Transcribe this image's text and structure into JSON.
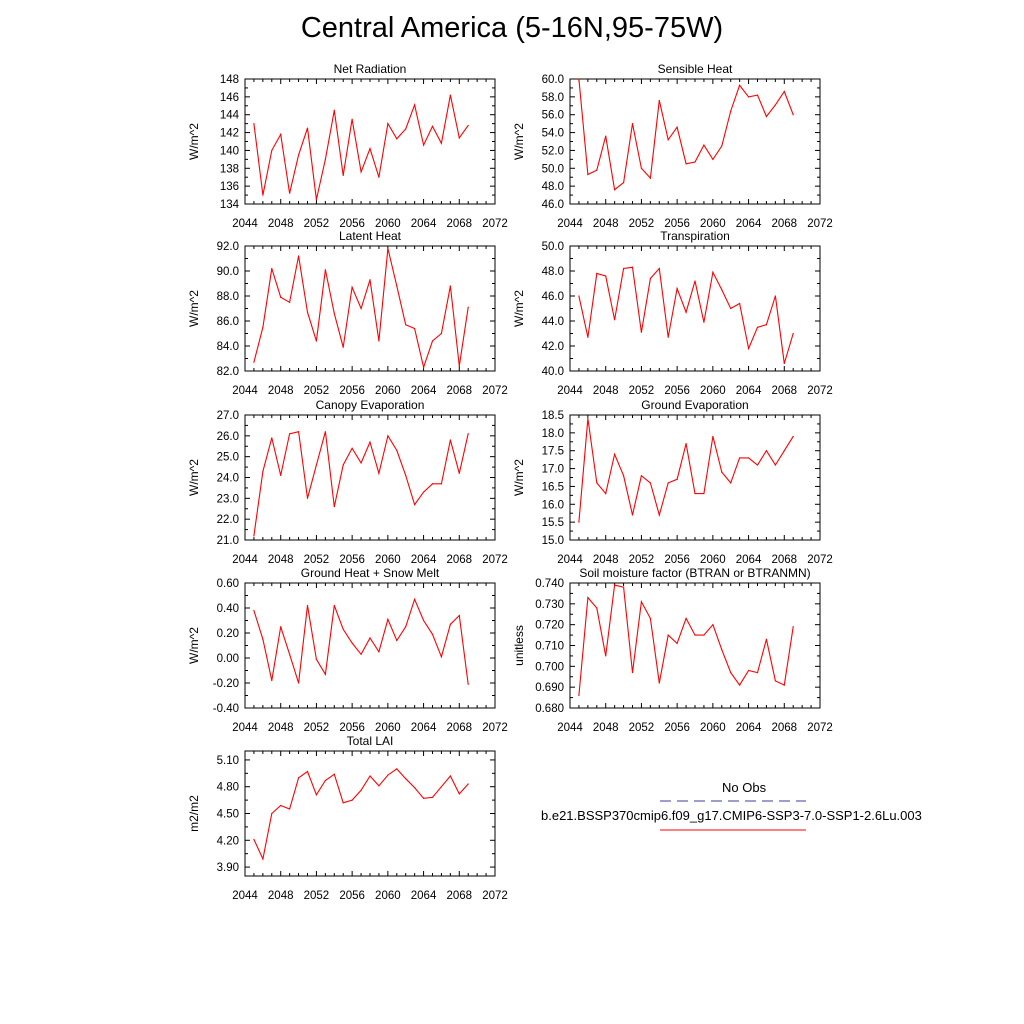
{
  "title": "Central America (5-16N,95-75W)",
  "legend": {
    "obs_label": "No Obs",
    "obs_color": "#3b3ba0",
    "model_label": "b.e21.BSSP370cmip6.f09_g17.CMIP6-SSP3-7.0-SSP1-2.6Lu.003",
    "model_color": "#ff0000"
  },
  "chart_data": [
    {
      "type": "line",
      "title": "Net Radiation",
      "ylabel": "W/m^2",
      "xlim": [
        2044,
        2072
      ],
      "xticks": [
        2044,
        2048,
        2052,
        2056,
        2060,
        2064,
        2068,
        2072
      ],
      "ylim": [
        134,
        148
      ],
      "yticks": [
        "134",
        "136",
        "138",
        "140",
        "142",
        "144",
        "146",
        "148"
      ],
      "x": [
        2045,
        2046,
        2047,
        2048,
        2049,
        2050,
        2051,
        2052,
        2053,
        2054,
        2055,
        2056,
        2057,
        2058,
        2059,
        2060,
        2061,
        2062,
        2063,
        2064,
        2065,
        2066,
        2067,
        2068,
        2069
      ],
      "series": [
        {
          "color": "#ff0000",
          "values": [
            143.0,
            135.0,
            140.0,
            141.8,
            135.2,
            139.5,
            142.5,
            134.5,
            139.0,
            144.5,
            137.2,
            143.5,
            137.6,
            140.2,
            137.0,
            143.0,
            141.3,
            142.4,
            145.1,
            140.6,
            142.7,
            140.8,
            146.2,
            141.4,
            142.8
          ]
        }
      ]
    },
    {
      "type": "line",
      "title": "Sensible Heat",
      "ylabel": "W/m^2",
      "xlim": [
        2044,
        2072
      ],
      "xticks": [
        2044,
        2048,
        2052,
        2056,
        2060,
        2064,
        2068,
        2072
      ],
      "ylim": [
        46,
        60
      ],
      "yticks": [
        "46.0",
        "48.0",
        "50.0",
        "52.0",
        "54.0",
        "56.0",
        "58.0",
        "60.0"
      ],
      "x": [
        2045,
        2046,
        2047,
        2048,
        2049,
        2050,
        2051,
        2052,
        2053,
        2054,
        2055,
        2056,
        2057,
        2058,
        2059,
        2060,
        2061,
        2062,
        2063,
        2064,
        2065,
        2066,
        2067,
        2068,
        2069
      ],
      "series": [
        {
          "color": "#ff0000",
          "values": [
            60.0,
            49.3,
            49.8,
            53.6,
            47.6,
            48.4,
            55.0,
            50.0,
            48.9,
            57.6,
            53.2,
            54.6,
            50.5,
            50.7,
            52.6,
            51.0,
            52.5,
            56.4,
            59.3,
            58.0,
            58.2,
            55.8,
            57.1,
            58.6,
            56.0
          ]
        }
      ]
    },
    {
      "type": "line",
      "title": "Latent Heat",
      "ylabel": "W/m^2",
      "xlim": [
        2044,
        2072
      ],
      "xticks": [
        2044,
        2048,
        2052,
        2056,
        2060,
        2064,
        2068,
        2072
      ],
      "ylim": [
        82,
        92
      ],
      "yticks": [
        "82.0",
        "84.0",
        "86.0",
        "88.0",
        "90.0",
        "92.0"
      ],
      "x": [
        2045,
        2046,
        2047,
        2048,
        2049,
        2050,
        2051,
        2052,
        2053,
        2054,
        2055,
        2056,
        2057,
        2058,
        2059,
        2060,
        2061,
        2062,
        2063,
        2064,
        2065,
        2066,
        2067,
        2068,
        2069
      ],
      "series": [
        {
          "color": "#ff0000",
          "values": [
            82.7,
            85.5,
            90.2,
            87.9,
            87.5,
            91.2,
            86.7,
            84.4,
            90.1,
            86.6,
            83.9,
            88.7,
            87.0,
            89.3,
            84.4,
            91.8,
            88.8,
            85.7,
            85.4,
            82.3,
            84.4,
            85.0,
            88.8,
            82.4,
            87.1
          ]
        }
      ]
    },
    {
      "type": "line",
      "title": "Transpiration",
      "ylabel": "W/m^2",
      "xlim": [
        2044,
        2072
      ],
      "xticks": [
        2044,
        2048,
        2052,
        2056,
        2060,
        2064,
        2068,
        2072
      ],
      "ylim": [
        40,
        50
      ],
      "yticks": [
        "40.0",
        "42.0",
        "44.0",
        "46.0",
        "48.0",
        "50.0"
      ],
      "x": [
        2045,
        2046,
        2047,
        2048,
        2049,
        2050,
        2051,
        2052,
        2053,
        2054,
        2055,
        2056,
        2057,
        2058,
        2059,
        2060,
        2061,
        2062,
        2063,
        2064,
        2065,
        2066,
        2067,
        2068,
        2069
      ],
      "series": [
        {
          "color": "#ff0000",
          "values": [
            46.0,
            42.7,
            47.8,
            47.6,
            44.1,
            48.2,
            48.3,
            43.1,
            47.4,
            48.2,
            42.7,
            46.6,
            44.7,
            47.2,
            43.9,
            47.9,
            46.5,
            45.0,
            45.4,
            41.8,
            43.5,
            43.7,
            46.0,
            40.6,
            43.0
          ]
        }
      ]
    },
    {
      "type": "line",
      "title": "Canopy Evaporation",
      "ylabel": "W/m^2",
      "xlim": [
        2044,
        2072
      ],
      "xticks": [
        2044,
        2048,
        2052,
        2056,
        2060,
        2064,
        2068,
        2072
      ],
      "ylim": [
        21,
        27
      ],
      "yticks": [
        "21.0",
        "22.0",
        "23.0",
        "24.0",
        "25.0",
        "26.0",
        "27.0"
      ],
      "x": [
        2045,
        2046,
        2047,
        2048,
        2049,
        2050,
        2051,
        2052,
        2053,
        2054,
        2055,
        2056,
        2057,
        2058,
        2059,
        2060,
        2061,
        2062,
        2063,
        2064,
        2065,
        2066,
        2067,
        2068,
        2069
      ],
      "series": [
        {
          "color": "#ff0000",
          "values": [
            21.2,
            24.3,
            25.9,
            24.1,
            26.1,
            26.2,
            23.0,
            24.6,
            26.2,
            22.6,
            24.6,
            25.4,
            24.7,
            25.7,
            24.2,
            26.0,
            25.3,
            24.1,
            22.7,
            23.3,
            23.7,
            23.7,
            25.8,
            24.2,
            26.1
          ]
        }
      ]
    },
    {
      "type": "line",
      "title": "Ground Evaporation",
      "ylabel": "W/m^2",
      "xlim": [
        2044,
        2072
      ],
      "xticks": [
        2044,
        2048,
        2052,
        2056,
        2060,
        2064,
        2068,
        2072
      ],
      "ylim": [
        15,
        18.5
      ],
      "yticks": [
        "15.0",
        "15.5",
        "16.0",
        "16.5",
        "17.0",
        "17.5",
        "18.0",
        "18.5"
      ],
      "x": [
        2045,
        2046,
        2047,
        2048,
        2049,
        2050,
        2051,
        2052,
        2053,
        2054,
        2055,
        2056,
        2057,
        2058,
        2059,
        2060,
        2061,
        2062,
        2063,
        2064,
        2065,
        2066,
        2067,
        2068,
        2069
      ],
      "series": [
        {
          "color": "#ff0000",
          "values": [
            15.5,
            18.4,
            16.6,
            16.3,
            17.4,
            16.8,
            15.7,
            16.8,
            16.6,
            15.7,
            16.6,
            16.7,
            17.7,
            16.3,
            16.3,
            17.9,
            16.9,
            16.6,
            17.3,
            17.3,
            17.1,
            17.5,
            17.1,
            17.5,
            17.9
          ]
        }
      ]
    },
    {
      "type": "line",
      "title": "Ground Heat + Snow Melt",
      "ylabel": "W/m^2",
      "xlim": [
        2044,
        2072
      ],
      "xticks": [
        2044,
        2048,
        2052,
        2056,
        2060,
        2064,
        2068,
        2072
      ],
      "ylim": [
        -0.4,
        0.6
      ],
      "yticks": [
        "-0.40",
        "-0.20",
        "0.00",
        "0.20",
        "0.40",
        "0.60"
      ],
      "x": [
        2045,
        2046,
        2047,
        2048,
        2049,
        2050,
        2051,
        2052,
        2053,
        2054,
        2055,
        2056,
        2057,
        2058,
        2059,
        2060,
        2061,
        2062,
        2063,
        2064,
        2065,
        2066,
        2067,
        2068,
        2069
      ],
      "series": [
        {
          "color": "#ff0000",
          "values": [
            0.38,
            0.15,
            -0.18,
            0.25,
            0.03,
            -0.2,
            0.42,
            -0.01,
            -0.13,
            0.42,
            0.23,
            0.12,
            0.03,
            0.16,
            0.05,
            0.31,
            0.14,
            0.25,
            0.47,
            0.3,
            0.19,
            0.01,
            0.27,
            0.34,
            -0.21
          ]
        }
      ]
    },
    {
      "type": "line",
      "title": "Soil moisture factor (BTRAN or BTRANMN)",
      "ylabel": "unitless",
      "xlim": [
        2044,
        2072
      ],
      "xticks": [
        2044,
        2048,
        2052,
        2056,
        2060,
        2064,
        2068,
        2072
      ],
      "ylim": [
        0.68,
        0.74
      ],
      "yticks": [
        "0.680",
        "0.690",
        "0.700",
        "0.710",
        "0.720",
        "0.730",
        "0.740"
      ],
      "x": [
        2045,
        2046,
        2047,
        2048,
        2049,
        2050,
        2051,
        2052,
        2053,
        2054,
        2055,
        2056,
        2057,
        2058,
        2059,
        2060,
        2061,
        2062,
        2063,
        2064,
        2065,
        2066,
        2067,
        2068,
        2069
      ],
      "series": [
        {
          "color": "#ff0000",
          "values": [
            0.686,
            0.733,
            0.728,
            0.705,
            0.739,
            0.738,
            0.697,
            0.731,
            0.723,
            0.692,
            0.715,
            0.711,
            0.723,
            0.715,
            0.715,
            0.72,
            0.708,
            0.697,
            0.691,
            0.698,
            0.697,
            0.713,
            0.693,
            0.691,
            0.719
          ]
        }
      ]
    },
    {
      "type": "line",
      "title": "Total LAI",
      "ylabel": "m2/m2",
      "xlim": [
        2044,
        2072
      ],
      "xticks": [
        2044,
        2048,
        2052,
        2056,
        2060,
        2064,
        2068,
        2072
      ],
      "ylim": [
        3.8,
        5.2
      ],
      "yticks": [
        "3.90",
        "4.20",
        "4.50",
        "4.80",
        "5.10"
      ],
      "x": [
        2045,
        2046,
        2047,
        2048,
        2049,
        2050,
        2051,
        2052,
        2053,
        2054,
        2055,
        2056,
        2057,
        2058,
        2059,
        2060,
        2061,
        2062,
        2063,
        2064,
        2065,
        2066,
        2067,
        2068,
        2069
      ],
      "series": [
        {
          "color": "#ff0000",
          "values": [
            4.21,
            3.99,
            4.5,
            4.59,
            4.55,
            4.9,
            4.97,
            4.71,
            4.87,
            4.94,
            4.62,
            4.65,
            4.76,
            4.92,
            4.81,
            4.93,
            5.0,
            4.89,
            4.79,
            4.67,
            4.68,
            4.8,
            4.92,
            4.72,
            4.83
          ]
        }
      ]
    }
  ]
}
